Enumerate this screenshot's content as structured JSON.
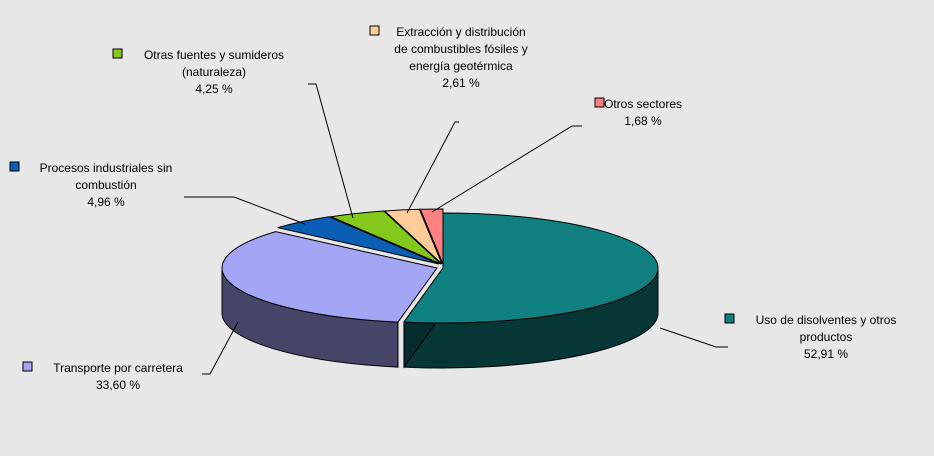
{
  "chart_data": {
    "type": "pie",
    "style": "3d-exploded",
    "title": "",
    "legend": "labels-with-leader-lines",
    "series": [
      {
        "label_lines": [
          "Uso de disolventes y otros",
          "productos"
        ],
        "value_text": "52,91 %",
        "value": 52.91,
        "color": "#118080"
      },
      {
        "label_lines": [
          "Transporte por carretera"
        ],
        "value_text": "33,60 %",
        "value": 33.6,
        "color": "#a5a5f5"
      },
      {
        "label_lines": [
          "Procesos industriales sin",
          "combustión"
        ],
        "value_text": "4,96 %",
        "value": 4.96,
        "color": "#0a5fb5"
      },
      {
        "label_lines": [
          "Otras fuentes y sumideros",
          "(naturaleza)"
        ],
        "value_text": "4,25 %",
        "value": 4.25,
        "color": "#84c81c"
      },
      {
        "label_lines": [
          "Extracción y distribución",
          "de combustibles fósiles y",
          "energía geotérmica"
        ],
        "value_text": "2,61 %",
        "value": 2.61,
        "color": "#ffcc99"
      },
      {
        "label_lines": [
          "Otros sectores"
        ],
        "value_text": "1,68 %",
        "value": 1.68,
        "color": "#ff8080"
      }
    ]
  }
}
